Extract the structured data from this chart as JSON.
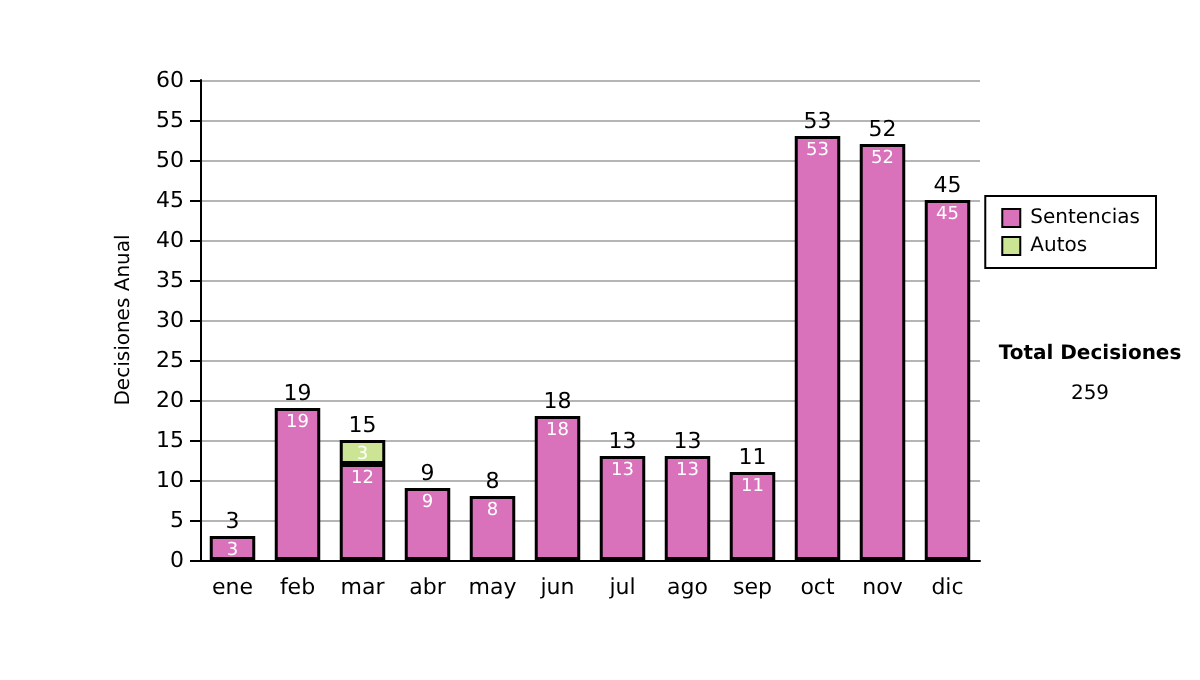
{
  "chart_data": {
    "type": "bar",
    "stacked": true,
    "ylabel": "Decisiones Anual",
    "categories": [
      "ene",
      "feb",
      "mar",
      "abr",
      "may",
      "jun",
      "jul",
      "ago",
      "sep",
      "oct",
      "nov",
      "dic"
    ],
    "series": [
      {
        "name": "Sentencias",
        "color": "#da72bb",
        "values": [
          3,
          19,
          12,
          9,
          8,
          18,
          13,
          13,
          11,
          53,
          52,
          45
        ]
      },
      {
        "name": "Autos",
        "color": "#cce595",
        "values": [
          null,
          null,
          3,
          null,
          null,
          null,
          null,
          null,
          null,
          null,
          null,
          null
        ]
      }
    ],
    "data_labels": true,
    "totals": [
      "3",
      "19",
      "15",
      "9",
      "8",
      "18",
      "13",
      "13",
      "11",
      "53",
      "52",
      "45"
    ],
    "ylim": [
      0,
      60
    ],
    "yticks": [
      0,
      5,
      10,
      15,
      20,
      25,
      30,
      35,
      40,
      45,
      50,
      55,
      60
    ],
    "grid": "y",
    "legend": "right",
    "annotations": [
      "Total Decisiones",
      "259"
    ]
  }
}
